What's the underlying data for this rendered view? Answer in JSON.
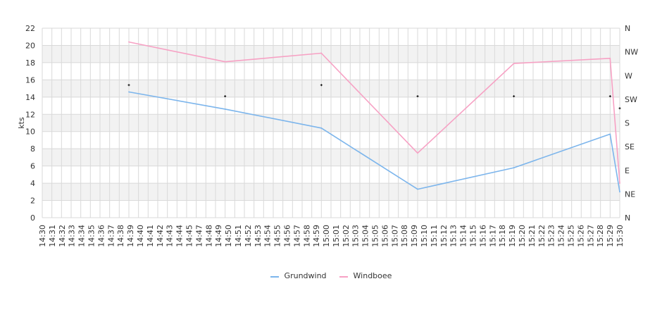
{
  "chart_data": {
    "type": "line",
    "ylabel": "kts",
    "ylim": [
      0,
      22
    ],
    "yticks": [
      "0",
      "2",
      "4",
      "6",
      "8",
      "10",
      "12",
      "14",
      "16",
      "18",
      "20",
      "22"
    ],
    "right_axis": {
      "labels": [
        "N",
        "NE",
        "E",
        "SE",
        "S",
        "SW",
        "W",
        "NW",
        "N"
      ]
    },
    "x_categories": [
      "14:30",
      "14:31",
      "14:32",
      "14:33",
      "14:34",
      "14:35",
      "14:36",
      "14:37",
      "14:38",
      "14:39",
      "14:40",
      "14:41",
      "14:42",
      "14:43",
      "14:44",
      "14:45",
      "14:46",
      "14:47",
      "14:48",
      "14:49",
      "14:50",
      "14:51",
      "14:52",
      "14:53",
      "14:54",
      "14:55",
      "14:56",
      "14:57",
      "14:58",
      "14:59",
      "15:00",
      "15:01",
      "15:02",
      "15:03",
      "15:04",
      "15:05",
      "15:06",
      "15:07",
      "15:08",
      "15:09",
      "15:10",
      "15:11",
      "15:12",
      "15:13",
      "15:14",
      "15:15",
      "15:16",
      "15:17",
      "15:18",
      "15:19",
      "15:20",
      "15:21",
      "15:22",
      "15:23",
      "15:24",
      "15:25",
      "15:26",
      "15:27",
      "15:28",
      "15:29",
      "15:30"
    ],
    "x_labels": [
      "14:30",
      "14:31",
      "14:32",
      "14:33",
      "14:34",
      "14:35",
      "14:36",
      "14:37",
      "14:38",
      "14:39",
      "14:40",
      "14:41",
      "14:42",
      "14:43",
      "14:44",
      "14:45",
      "14:47",
      "14:48",
      "14:49",
      "14:50",
      "14:51",
      "14:52",
      "14:53",
      "14:54",
      "14:55",
      "14:56",
      "14:57",
      "14:58",
      "14:59",
      "15:00",
      "15:01",
      "15:02",
      "15:03",
      "15:04",
      "15:05",
      "15:06",
      "15:07",
      "15:08",
      "15:09",
      "15:10",
      "15:11",
      "15:12",
      "15:13",
      "15:14",
      "15:15",
      "15:16",
      "15:17",
      "15:18",
      "15:19",
      "15:20",
      "15:21",
      "15:22",
      "15:23",
      "15:24",
      "15:25",
      "15:26",
      "15:27",
      "15:28",
      "15:29",
      "15:30"
    ],
    "series": [
      {
        "name": "Grundwind",
        "color": "#7cb5ec",
        "points": [
          [
            "14:39",
            14.6
          ],
          [
            "14:49",
            12.6
          ],
          [
            "14:59",
            10.4
          ],
          [
            "15:09",
            3.3
          ],
          [
            "15:19",
            5.8
          ],
          [
            "15:29",
            9.7
          ],
          [
            "15:30",
            3.0
          ]
        ]
      },
      {
        "name": "Windboee",
        "color": "#f7a1c4",
        "points": [
          [
            "14:39",
            20.4
          ],
          [
            "14:49",
            18.1
          ],
          [
            "14:59",
            19.1
          ],
          [
            "15:09",
            7.5
          ],
          [
            "15:19",
            17.9
          ],
          [
            "15:29",
            18.5
          ],
          [
            "15:30",
            4.0
          ]
        ]
      }
    ],
    "direction_markers": [
      {
        "x": "14:39",
        "y": 15.4
      },
      {
        "x": "14:49",
        "y": 14.1
      },
      {
        "x": "14:59",
        "y": 15.4
      },
      {
        "x": "15:09",
        "y": 14.1
      },
      {
        "x": "15:19",
        "y": 14.1
      },
      {
        "x": "15:29",
        "y": 14.1
      },
      {
        "x": "15:30",
        "y": 12.7
      }
    ],
    "band_color": "#f2f2f2",
    "grid": true,
    "legend_position": "bottom-center"
  }
}
